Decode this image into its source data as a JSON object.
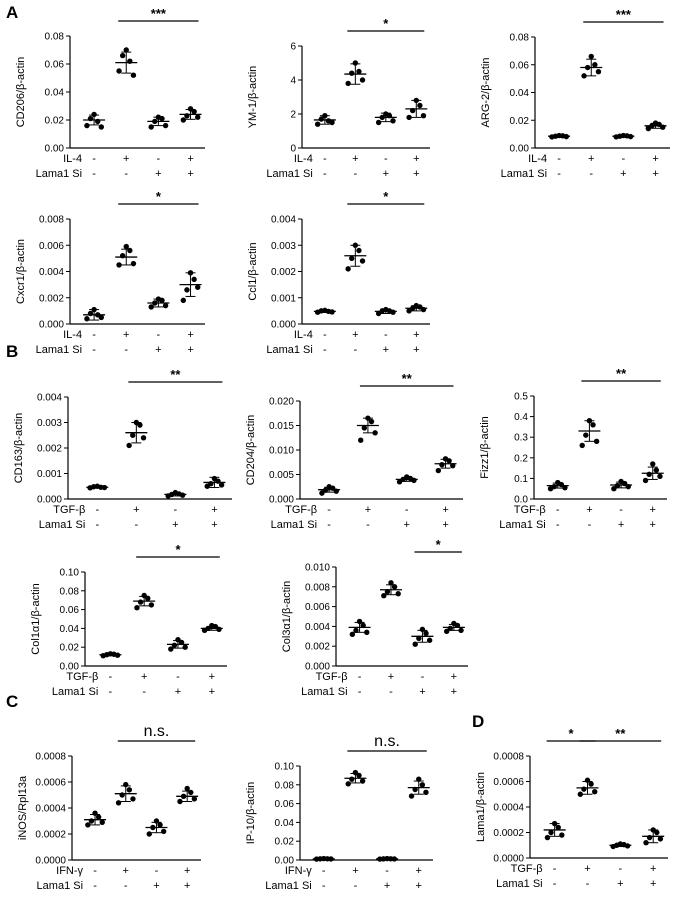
{
  "panels": [
    {
      "letter": "A"
    },
    {
      "letter": "B"
    },
    {
      "letter": "C"
    },
    {
      "letter": "D"
    }
  ],
  "chart_data": [
    {
      "type": "scatter",
      "panel": "A",
      "ylabel": "CD206/β-actin",
      "ylim": [
        0,
        0.08
      ],
      "yticks": [
        "0.00",
        "0.02",
        "0.04",
        "0.06",
        "0.08"
      ],
      "rows": [
        {
          "label": "IL-4",
          "marks": [
            "-",
            "+",
            "-",
            "+"
          ]
        },
        {
          "label": "Lama1 Si",
          "marks": [
            "-",
            "-",
            "+",
            "+"
          ]
        }
      ],
      "groups": [
        [
          0.016,
          0.021,
          0.024,
          0.019,
          0.015
        ],
        [
          0.055,
          0.066,
          0.07,
          0.062,
          0.052
        ],
        [
          0.015,
          0.019,
          0.022,
          0.021,
          0.016
        ],
        [
          0.02,
          0.023,
          0.028,
          0.026,
          0.022
        ]
      ],
      "means": [
        0.02,
        0.061,
        0.019,
        0.024
      ],
      "sds": [
        0.0035,
        0.0075,
        0.003,
        0.0035
      ],
      "sig": {
        "from": 1,
        "to": 3,
        "text": "***"
      }
    },
    {
      "type": "scatter",
      "panel": "A",
      "ylabel": "YM-1/β-actin",
      "ylim": [
        0,
        6
      ],
      "yticks": [
        "0",
        "2",
        "4",
        "6"
      ],
      "rows": [
        {
          "label": "IL-4",
          "marks": [
            "-",
            "+",
            "-",
            "+"
          ]
        },
        {
          "label": "Lama1 Si",
          "marks": [
            "-",
            "-",
            "+",
            "+"
          ]
        }
      ],
      "groups": [
        [
          1.4,
          1.7,
          1.9,
          1.6,
          1.5
        ],
        [
          3.8,
          4.4,
          5.0,
          4.5,
          4.0
        ],
        [
          1.5,
          1.8,
          2.0,
          1.9,
          1.6
        ],
        [
          1.8,
          2.2,
          2.8,
          2.5,
          1.9
        ]
      ],
      "means": [
        1.65,
        4.35,
        1.8,
        2.3
      ],
      "sds": [
        0.25,
        0.6,
        0.25,
        0.5
      ],
      "sig": {
        "from": 1,
        "to": 3,
        "text": "*"
      }
    },
    {
      "type": "scatter",
      "panel": "A",
      "ylabel": "ARG-2/β-actin",
      "ylim": [
        0,
        0.08
      ],
      "yticks": [
        "0.00",
        "0.02",
        "0.04",
        "0.06",
        "0.08"
      ],
      "rows": [
        {
          "label": "IL-4",
          "marks": [
            "-",
            "+",
            "-",
            "+"
          ]
        },
        {
          "label": "Lama1 Si",
          "marks": [
            "-",
            "-",
            "+",
            "+"
          ]
        }
      ],
      "groups": [
        [
          0.008,
          0.0085,
          0.009,
          0.0088,
          0.0082
        ],
        [
          0.052,
          0.058,
          0.066,
          0.06,
          0.055
        ],
        [
          0.008,
          0.0085,
          0.009,
          0.0088,
          0.0082
        ],
        [
          0.014,
          0.016,
          0.018,
          0.017,
          0.015
        ]
      ],
      "means": [
        0.0085,
        0.058,
        0.0085,
        0.016
      ],
      "sds": [
        0.0008,
        0.006,
        0.0008,
        0.0018
      ],
      "sig": {
        "from": 1,
        "to": 3,
        "text": "***"
      }
    },
    {
      "type": "scatter",
      "panel": "A",
      "ylabel": "Cxcr1/β-actin",
      "ylim": [
        0,
        0.008
      ],
      "yticks": [
        "0.000",
        "0.002",
        "0.004",
        "0.006",
        "0.008"
      ],
      "rows": [
        {
          "label": "IL-4",
          "marks": [
            "-",
            "+",
            "-",
            "+"
          ]
        },
        {
          "label": "Lama1 Si",
          "marks": [
            "-",
            "-",
            "+",
            "+"
          ]
        }
      ],
      "groups": [
        [
          0.0004,
          0.0008,
          0.0011,
          0.0007,
          0.0005
        ],
        [
          0.0045,
          0.0052,
          0.0059,
          0.0056,
          0.0046
        ],
        [
          0.0013,
          0.0016,
          0.0019,
          0.0018,
          0.0014
        ],
        [
          0.0018,
          0.0026,
          0.0039,
          0.0034,
          0.0028
        ]
      ],
      "means": [
        0.0007,
        0.0051,
        0.0016,
        0.003
      ],
      "sds": [
        0.0004,
        0.0006,
        0.0003,
        0.0009
      ],
      "sig": {
        "from": 1,
        "to": 3,
        "text": "*"
      }
    },
    {
      "type": "scatter",
      "panel": "A",
      "ylabel": "Ccl1/β-actin",
      "ylim": [
        0,
        0.004
      ],
      "yticks": [
        "0.000",
        "0.001",
        "0.002",
        "0.003",
        "0.004"
      ],
      "rows": [
        {
          "label": "IL-4",
          "marks": [
            "-",
            "+",
            "-",
            "+"
          ]
        },
        {
          "label": "Lama1 Si",
          "marks": [
            "-",
            "-",
            "+",
            "+"
          ]
        }
      ],
      "groups": [
        [
          0.00045,
          0.0005,
          0.00052,
          0.00048,
          0.00046
        ],
        [
          0.0021,
          0.0025,
          0.003,
          0.0028,
          0.0024
        ],
        [
          0.0004,
          0.0005,
          0.00055,
          0.0005,
          0.00045
        ],
        [
          0.0005,
          0.0006,
          0.0007,
          0.00065,
          0.00055
        ]
      ],
      "means": [
        0.00048,
        0.0026,
        0.00048,
        0.0006
      ],
      "sds": [
        4e-05,
        0.0004,
        8e-05,
        0.0001
      ],
      "sig": {
        "from": 1,
        "to": 3,
        "text": "*"
      }
    },
    {
      "type": "scatter",
      "panel": "B",
      "ylabel": "CD163/β-actin",
      "ylim": [
        0,
        0.004
      ],
      "yticks": [
        "0.000",
        "0.001",
        "0.002",
        "0.003",
        "0.004"
      ],
      "rows": [
        {
          "label": "TGF-β",
          "marks": [
            "-",
            "+",
            "-",
            "+"
          ]
        },
        {
          "label": "Lama1 Si",
          "marks": [
            "-",
            "-",
            "+",
            "+"
          ]
        }
      ],
      "groups": [
        [
          0.00044,
          0.00048,
          0.0005,
          0.00046,
          0.00045
        ],
        [
          0.0021,
          0.0025,
          0.003,
          0.0029,
          0.0024
        ],
        [
          0.00012,
          0.00018,
          0.00025,
          0.0002,
          0.00015
        ],
        [
          0.0005,
          0.0006,
          0.0008,
          0.0007,
          0.00055
        ]
      ],
      "means": [
        0.00046,
        0.0026,
        0.00018,
        0.00065
      ],
      "sds": [
        3e-05,
        0.0004,
        6e-05,
        0.0002
      ],
      "sig": {
        "from": 1,
        "to": 3,
        "text": "**"
      }
    },
    {
      "type": "scatter",
      "panel": "B",
      "ylabel": "CD204/β-actin",
      "ylim": [
        0,
        0.02
      ],
      "yticks": [
        "0.000",
        "0.005",
        "0.010",
        "0.015",
        "0.020"
      ],
      "rows": [
        {
          "label": "TGF-β",
          "marks": [
            "-",
            "+",
            "-",
            "+"
          ]
        },
        {
          "label": "Lama1 Si",
          "marks": [
            "-",
            "-",
            "+",
            "+"
          ]
        }
      ],
      "groups": [
        [
          0.0012,
          0.0018,
          0.0025,
          0.0022,
          0.0016
        ],
        [
          0.012,
          0.0145,
          0.0165,
          0.0158,
          0.0135
        ],
        [
          0.0035,
          0.004,
          0.0045,
          0.0042,
          0.0038
        ],
        [
          0.0058,
          0.007,
          0.0082,
          0.0078,
          0.0068
        ]
      ],
      "means": [
        0.0019,
        0.015,
        0.004,
        0.0072
      ],
      "sds": [
        0.0005,
        0.0015,
        0.0004,
        0.0009
      ],
      "sig": {
        "from": 1,
        "to": 3,
        "text": "**"
      }
    },
    {
      "type": "scatter",
      "panel": "B",
      "ylabel": "Fizz1/β-actin",
      "ylim": [
        0,
        0.5
      ],
      "yticks": [
        "0.0",
        "0.1",
        "0.2",
        "0.3",
        "0.4",
        "0.5"
      ],
      "rows": [
        {
          "label": "TGF-β",
          "marks": [
            "-",
            "+",
            "-",
            "+"
          ]
        },
        {
          "label": "Lama1 Si",
          "marks": [
            "-",
            "-",
            "+",
            "+"
          ]
        }
      ],
      "groups": [
        [
          0.05,
          0.06,
          0.08,
          0.07,
          0.055
        ],
        [
          0.26,
          0.31,
          0.38,
          0.36,
          0.28
        ],
        [
          0.05,
          0.065,
          0.085,
          0.075,
          0.06
        ],
        [
          0.09,
          0.12,
          0.17,
          0.14,
          0.11
        ]
      ],
      "means": [
        0.065,
        0.33,
        0.068,
        0.125
      ],
      "sds": [
        0.012,
        0.05,
        0.014,
        0.03
      ],
      "sig": {
        "from": 1,
        "to": 3,
        "text": "**"
      }
    },
    {
      "type": "scatter",
      "panel": "B",
      "ylabel": "Col1α1/β-actin",
      "ylim": [
        0,
        0.1
      ],
      "yticks": [
        "0.00",
        "0.02",
        "0.04",
        "0.06",
        "0.08",
        "0.10"
      ],
      "rows": [
        {
          "label": "TGF-β",
          "marks": [
            "-",
            "+",
            "-",
            "+"
          ]
        },
        {
          "label": "Lama1 Si",
          "marks": [
            "-",
            "-",
            "+",
            "+"
          ]
        }
      ],
      "groups": [
        [
          0.011,
          0.012,
          0.013,
          0.0125,
          0.0115
        ],
        [
          0.062,
          0.068,
          0.075,
          0.072,
          0.065
        ],
        [
          0.018,
          0.022,
          0.028,
          0.025,
          0.02
        ],
        [
          0.038,
          0.04,
          0.043,
          0.042,
          0.039
        ]
      ],
      "means": [
        0.012,
        0.069,
        0.023,
        0.04
      ],
      "sds": [
        0.001,
        0.005,
        0.004,
        0.002
      ],
      "sig": {
        "from": 1,
        "to": 3,
        "text": "*"
      }
    },
    {
      "type": "scatter",
      "panel": "B",
      "ylabel": "Col3α1/β-actin",
      "ylim": [
        0,
        0.01
      ],
      "yticks": [
        "0.000",
        "0.002",
        "0.004",
        "0.006",
        "0.008",
        "0.010"
      ],
      "rows": [
        {
          "label": "TGF-β",
          "marks": [
            "-",
            "+",
            "-",
            "+"
          ]
        },
        {
          "label": "Lama1 Si",
          "marks": [
            "-",
            "-",
            "+",
            "+"
          ]
        }
      ],
      "groups": [
        [
          0.0032,
          0.0036,
          0.0045,
          0.0041,
          0.0034
        ],
        [
          0.0071,
          0.0075,
          0.0084,
          0.008,
          0.0073
        ],
        [
          0.0022,
          0.0028,
          0.0037,
          0.0033,
          0.0026
        ],
        [
          0.0035,
          0.0038,
          0.0043,
          0.0041,
          0.0036
        ]
      ],
      "means": [
        0.0039,
        0.0077,
        0.003,
        0.0039
      ],
      "sds": [
        0.0005,
        0.0005,
        0.0006,
        0.0003
      ],
      "sig": {
        "from": 2,
        "to": 3,
        "text": "*"
      }
    },
    {
      "type": "scatter",
      "panel": "C",
      "ylabel": "iNOS/Rpl13a",
      "ylim": [
        0,
        0.0008
      ],
      "yticks": [
        "0.0000",
        "0.0002",
        "0.0004",
        "0.0006",
        "0.0008"
      ],
      "rows": [
        {
          "label": "IFN-γ",
          "marks": [
            "-",
            "+",
            "-",
            "+"
          ]
        },
        {
          "label": "Lama1 Si",
          "marks": [
            "-",
            "-",
            "+",
            "+"
          ]
        }
      ],
      "groups": [
        [
          0.00027,
          0.0003,
          0.00036,
          0.00033,
          0.00029
        ],
        [
          0.00044,
          0.0005,
          0.00058,
          0.00054,
          0.00047
        ],
        [
          0.0002,
          0.00025,
          0.0003,
          0.00027,
          0.00022
        ],
        [
          0.00045,
          0.00049,
          0.00055,
          0.00052,
          0.00047
        ]
      ],
      "means": [
        0.00031,
        0.00051,
        0.00025,
        0.00049
      ],
      "sds": [
        4e-05,
        6e-05,
        4e-05,
        4e-05
      ],
      "sig": {
        "from": 1,
        "to": 3,
        "text": "n.s."
      }
    },
    {
      "type": "scatter",
      "panel": "C",
      "ylabel": "IP-10/β-actin",
      "ylim": [
        0,
        0.1
      ],
      "yticks": [
        "0.00",
        "0.02",
        "0.04",
        "0.06",
        "0.08",
        "0.10"
      ],
      "rows": [
        {
          "label": "IFN-γ",
          "marks": [
            "-",
            "+",
            "-",
            "+"
          ]
        },
        {
          "label": "Lama1 Si",
          "marks": [
            "-",
            "-",
            "+",
            "+"
          ]
        }
      ],
      "groups": [
        [
          0.001,
          0.0012,
          0.0015,
          0.0013,
          0.0011
        ],
        [
          0.081,
          0.086,
          0.093,
          0.09,
          0.084
        ],
        [
          0.001,
          0.0012,
          0.0015,
          0.0013,
          0.0011
        ],
        [
          0.068,
          0.075,
          0.086,
          0.08,
          0.072
        ]
      ],
      "means": [
        0.0012,
        0.087,
        0.0012,
        0.077
      ],
      "sds": [
        0.0002,
        0.005,
        0.0002,
        0.007
      ],
      "sig": {
        "from": 1,
        "to": 3,
        "text": "n.s."
      }
    },
    {
      "type": "scatter",
      "panel": "D",
      "ylabel": "Lama1/β-actin",
      "ylim": [
        0,
        0.0008
      ],
      "yticks": [
        "0.0000",
        "0.0002",
        "0.0004",
        "0.0006",
        "0.0008"
      ],
      "rows": [
        {
          "label": "TGF-β",
          "marks": [
            "-",
            "+",
            "-",
            "+"
          ]
        },
        {
          "label": "Lama1 Si",
          "marks": [
            "-",
            "-",
            "+",
            "+"
          ]
        }
      ],
      "groups": [
        [
          0.00016,
          0.0002,
          0.00027,
          0.00024,
          0.00018
        ],
        [
          0.0005,
          0.00054,
          0.00061,
          0.00058,
          0.00052
        ],
        [
          9e-05,
          0.0001,
          0.00011,
          0.000105,
          9.5e-05
        ],
        [
          0.00012,
          0.00016,
          0.00022,
          0.0002,
          0.00015
        ]
      ],
      "means": [
        0.00022,
        0.00055,
        0.0001,
        0.00017
      ],
      "sds": [
        5e-05,
        5e-05,
        1e-05,
        5e-05
      ],
      "sig": [
        {
          "from": 0,
          "to": 1,
          "text": "*"
        },
        {
          "from": 1,
          "to": 3,
          "text": "**"
        }
      ]
    }
  ]
}
